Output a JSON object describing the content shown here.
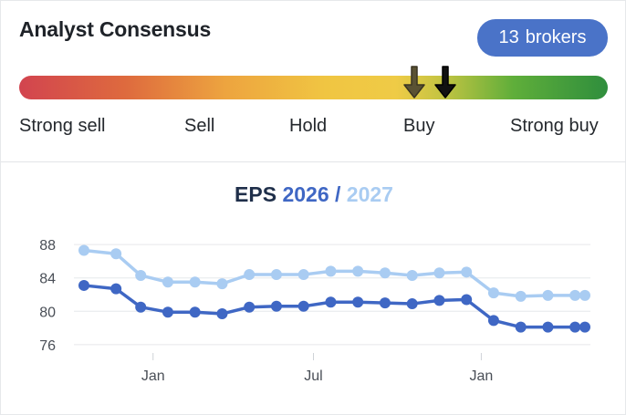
{
  "consensus": {
    "title": "Analyst Consensus",
    "brokers_count": "13",
    "brokers_label": "brokers",
    "scale": [
      "Strong sell",
      "Sell",
      "Hold",
      "Buy",
      "Strong buy"
    ],
    "colors": {
      "badge": "#4a73c8",
      "gauge_low": "#d2444f",
      "gauge_mid": "#f0c542",
      "gauge_high": "#2f8e3d"
    }
  },
  "eps": {
    "label": "EPS",
    "year_primary": "2026",
    "separator": "/",
    "year_secondary": "2027"
  },
  "chart_data": {
    "type": "line",
    "title": "EPS 2026 / 2027",
    "y_ticks": [
      88,
      84,
      80,
      76
    ],
    "ylim": [
      75,
      89
    ],
    "x_tick_labels": [
      "Jan",
      "Jul",
      "Jan"
    ],
    "x_tick_positions": [
      2.8,
      9.3,
      16.1
    ],
    "grid": true,
    "legend": "title",
    "series": [
      {
        "name": "2027",
        "color": "#a9ccf2",
        "x": [
          0,
          1.3,
          2.3,
          3.4,
          4.5,
          5.6,
          6.7,
          7.8,
          8.9,
          10,
          11.1,
          12.2,
          13.3,
          14.4,
          15.5,
          16.6,
          17.7,
          18.8,
          19.9,
          20.3
        ],
        "values": [
          87.3,
          86.9,
          84.3,
          83.5,
          83.5,
          83.3,
          84.4,
          84.4,
          84.4,
          84.8,
          84.8,
          84.6,
          84.3,
          84.6,
          84.7,
          82.2,
          81.8,
          81.9,
          81.9,
          81.9
        ]
      },
      {
        "name": "2026",
        "color": "#3f67c4",
        "x": [
          0,
          1.3,
          2.3,
          3.4,
          4.5,
          5.6,
          6.7,
          7.8,
          8.9,
          10,
          11.1,
          12.2,
          13.3,
          14.4,
          15.5,
          16.6,
          17.7,
          18.8,
          19.9,
          20.3
        ],
        "values": [
          83.1,
          82.7,
          80.5,
          79.9,
          79.9,
          79.7,
          80.5,
          80.6,
          80.6,
          81.1,
          81.1,
          81.0,
          80.9,
          81.3,
          81.4,
          78.9,
          78.1,
          78.1,
          78.1,
          78.1
        ]
      }
    ]
  }
}
